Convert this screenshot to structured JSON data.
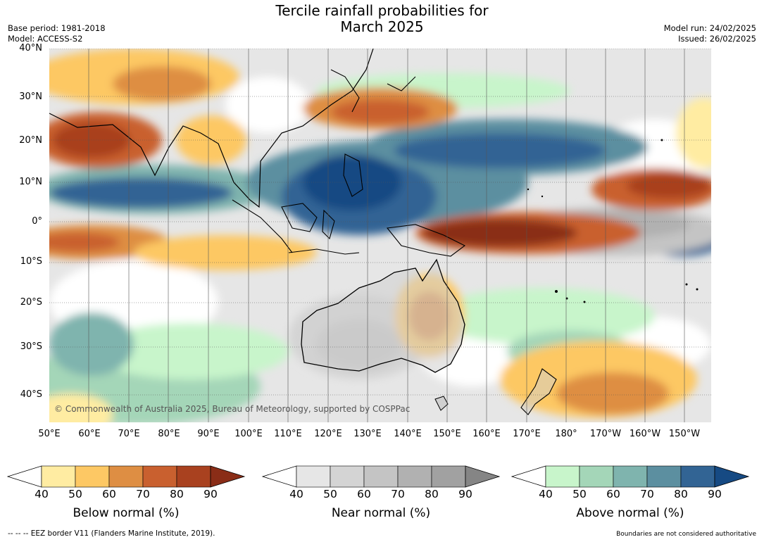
{
  "title": {
    "line1": "Tercile rainfall probabilities for",
    "line2": "March 2025"
  },
  "meta_left": {
    "base_period": "Base period: 1981-2018",
    "model": "Model: ACCESS-S2"
  },
  "meta_right": {
    "model_run": "Model run: 24/02/2025",
    "issued": "Issued: 26/02/2025"
  },
  "map": {
    "lat_labels": [
      "40°N",
      "30°N",
      "20°N",
      "10°N",
      "0°",
      "10°S",
      "20°S",
      "30°S",
      "40°S"
    ],
    "lon_labels": [
      "50°E",
      "60°E",
      "70°E",
      "80°E",
      "90°E",
      "100°E",
      "110°E",
      "120°E",
      "130°E",
      "140°E",
      "150°E",
      "160°E",
      "170°E",
      "180°",
      "170°W",
      "160°W",
      "150°W"
    ],
    "copyright": "© Commonwealth of Australia 2025, Bureau of Meteorology, supported by COSPPac"
  },
  "colorbars": [
    {
      "title": "Below normal (%)",
      "ticks": [
        "40",
        "50",
        "60",
        "70",
        "80",
        "90"
      ],
      "colors": [
        "#ffffff",
        "#ffeca2",
        "#fdc864",
        "#de8e43",
        "#c9602f",
        "#a9411f",
        "#8a2d17"
      ]
    },
    {
      "title": "Near normal (%)",
      "ticks": [
        "40",
        "50",
        "60",
        "70",
        "80",
        "90"
      ],
      "colors": [
        "#ffffff",
        "#e6e6e6",
        "#d4d4d4",
        "#c4c4c4",
        "#b1b1b1",
        "#a1a1a1",
        "#858585"
      ]
    },
    {
      "title": "Above normal (%)",
      "ticks": [
        "40",
        "50",
        "60",
        "70",
        "80",
        "90"
      ],
      "colors": [
        "#ffffff",
        "#c8f5cb",
        "#a4d6b8",
        "#7fb4ae",
        "#5c8fa0",
        "#326494",
        "#164a83"
      ]
    }
  ],
  "footer": {
    "eez": "--  --  -- EEZ border V11 (Flanders Marine Institute, 2019).",
    "disclaimer": "Boundaries are not considered authoritative"
  }
}
